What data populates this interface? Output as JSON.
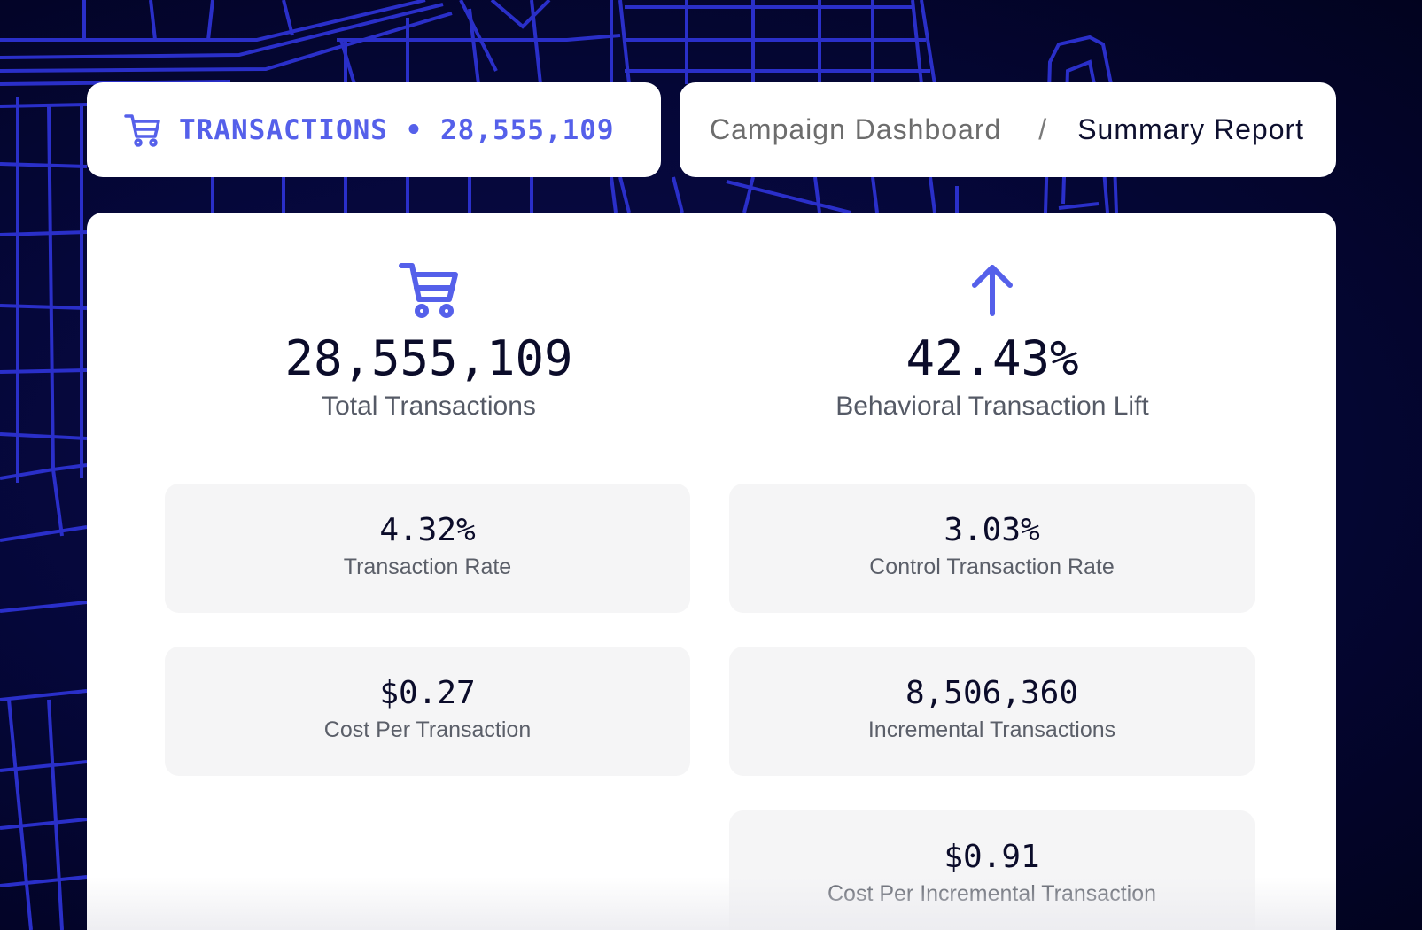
{
  "header": {
    "icon": "shopping-cart-icon",
    "title": "TRANSACTIONS • 28,555,109"
  },
  "breadcrumb": {
    "parent": "Campaign Dashboard",
    "separator": "/",
    "current": "Summary Report"
  },
  "hero_left": {
    "icon": "shopping-cart-icon",
    "value": "28,555,109",
    "label": "Total Transactions"
  },
  "hero_right": {
    "icon": "arrow-up-icon",
    "value": "42.43%",
    "label": "Behavioral Transaction Lift"
  },
  "tiles": [
    {
      "value": "4.32%",
      "label": "Transaction Rate"
    },
    {
      "value": "3.03%",
      "label": "Control Transaction Rate"
    },
    {
      "value": "$0.27",
      "label": "Cost Per Transaction"
    },
    {
      "value": "8,506,360",
      "label": "Incremental Transactions"
    },
    {
      "value": "$0.91",
      "label": "Cost Per Incremental Transaction"
    }
  ],
  "colors": {
    "accent": "#5560ea",
    "background": "#03052a",
    "map_lines": "#2a2fc9",
    "tile": "#f5f5f6"
  }
}
